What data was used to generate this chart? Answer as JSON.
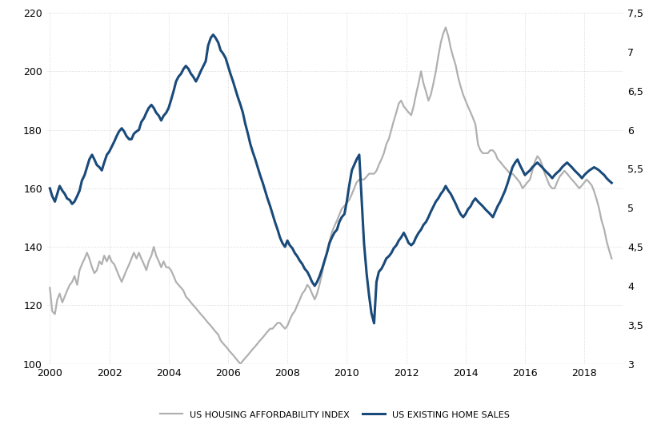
{
  "background_color": "#ffffff",
  "grid_color": "#d0d0d0",
  "affordability_color": "#b0b0b0",
  "sales_color": "#1a4a7a",
  "affordability_lw": 1.6,
  "sales_lw": 2.2,
  "left_ylim": [
    100,
    220
  ],
  "right_ylim": [
    3,
    7.5
  ],
  "left_yticks": [
    100,
    120,
    140,
    160,
    180,
    200,
    220
  ],
  "right_yticks": [
    3.0,
    3.5,
    4.0,
    4.5,
    5.0,
    5.5,
    6.0,
    6.5,
    7.0,
    7.5
  ],
  "right_ytick_labels": [
    "3",
    "3,5",
    "4",
    "4,5",
    "5",
    "5,5",
    "6",
    "6,5",
    "7",
    "7,5"
  ],
  "xticks": [
    2000,
    2002,
    2004,
    2006,
    2008,
    2010,
    2012,
    2014,
    2016,
    2018
  ],
  "xlim": [
    1999.9,
    2019.3
  ],
  "legend_labels": [
    "US HOUSING AFFORDABILITY INDEX",
    "US EXISTING HOME SALES"
  ],
  "legend_colors": [
    "#b0b0b0",
    "#1a4a7a"
  ],
  "affordability_data": {
    "years": [
      2000.0,
      2000.08,
      2000.17,
      2000.25,
      2000.33,
      2000.42,
      2000.5,
      2000.58,
      2000.67,
      2000.75,
      2000.83,
      2000.92,
      2001.0,
      2001.08,
      2001.17,
      2001.25,
      2001.33,
      2001.42,
      2001.5,
      2001.58,
      2001.67,
      2001.75,
      2001.83,
      2001.92,
      2002.0,
      2002.08,
      2002.17,
      2002.25,
      2002.33,
      2002.42,
      2002.5,
      2002.58,
      2002.67,
      2002.75,
      2002.83,
      2002.92,
      2003.0,
      2003.08,
      2003.17,
      2003.25,
      2003.33,
      2003.42,
      2003.5,
      2003.58,
      2003.67,
      2003.75,
      2003.83,
      2003.92,
      2004.0,
      2004.08,
      2004.17,
      2004.25,
      2004.33,
      2004.42,
      2004.5,
      2004.58,
      2004.67,
      2004.75,
      2004.83,
      2004.92,
      2005.0,
      2005.08,
      2005.17,
      2005.25,
      2005.33,
      2005.42,
      2005.5,
      2005.58,
      2005.67,
      2005.75,
      2005.83,
      2005.92,
      2006.0,
      2006.08,
      2006.17,
      2006.25,
      2006.33,
      2006.42,
      2006.5,
      2006.58,
      2006.67,
      2006.75,
      2006.83,
      2006.92,
      2007.0,
      2007.08,
      2007.17,
      2007.25,
      2007.33,
      2007.42,
      2007.5,
      2007.58,
      2007.67,
      2007.75,
      2007.83,
      2007.92,
      2008.0,
      2008.08,
      2008.17,
      2008.25,
      2008.33,
      2008.42,
      2008.5,
      2008.58,
      2008.67,
      2008.75,
      2008.83,
      2008.92,
      2009.0,
      2009.08,
      2009.17,
      2009.25,
      2009.33,
      2009.42,
      2009.5,
      2009.58,
      2009.67,
      2009.75,
      2009.83,
      2009.92,
      2010.0,
      2010.08,
      2010.17,
      2010.25,
      2010.33,
      2010.42,
      2010.5,
      2010.58,
      2010.67,
      2010.75,
      2010.83,
      2010.92,
      2011.0,
      2011.08,
      2011.17,
      2011.25,
      2011.33,
      2011.42,
      2011.5,
      2011.58,
      2011.67,
      2011.75,
      2011.83,
      2011.92,
      2012.0,
      2012.08,
      2012.17,
      2012.25,
      2012.33,
      2012.42,
      2012.5,
      2012.58,
      2012.67,
      2012.75,
      2012.83,
      2012.92,
      2013.0,
      2013.08,
      2013.17,
      2013.25,
      2013.33,
      2013.42,
      2013.5,
      2013.58,
      2013.67,
      2013.75,
      2013.83,
      2013.92,
      2014.0,
      2014.08,
      2014.17,
      2014.25,
      2014.33,
      2014.42,
      2014.5,
      2014.58,
      2014.67,
      2014.75,
      2014.83,
      2014.92,
      2015.0,
      2015.08,
      2015.17,
      2015.25,
      2015.33,
      2015.42,
      2015.5,
      2015.58,
      2015.67,
      2015.75,
      2015.83,
      2015.92,
      2016.0,
      2016.08,
      2016.17,
      2016.25,
      2016.33,
      2016.42,
      2016.5,
      2016.58,
      2016.67,
      2016.75,
      2016.83,
      2016.92,
      2017.0,
      2017.08,
      2017.17,
      2017.25,
      2017.33,
      2017.42,
      2017.5,
      2017.58,
      2017.67,
      2017.75,
      2017.83,
      2017.92,
      2018.0,
      2018.08,
      2018.17,
      2018.25,
      2018.33,
      2018.42,
      2018.5,
      2018.58,
      2018.67,
      2018.75,
      2018.83,
      2018.92
    ],
    "values": [
      126,
      118,
      117,
      122,
      124,
      121,
      123,
      125,
      127,
      128,
      130,
      127,
      132,
      134,
      136,
      138,
      136,
      133,
      131,
      132,
      135,
      134,
      137,
      135,
      137,
      135,
      134,
      132,
      130,
      128,
      130,
      132,
      134,
      136,
      138,
      136,
      138,
      136,
      134,
      132,
      135,
      137,
      140,
      137,
      135,
      133,
      135,
      133,
      133,
      132,
      130,
      128,
      127,
      126,
      125,
      123,
      122,
      121,
      120,
      119,
      118,
      117,
      116,
      115,
      114,
      113,
      112,
      111,
      110,
      108,
      107,
      106,
      105,
      104,
      103,
      102,
      101,
      100,
      101,
      102,
      103,
      104,
      105,
      106,
      107,
      108,
      109,
      110,
      111,
      112,
      112,
      113,
      114,
      114,
      113,
      112,
      113,
      115,
      117,
      118,
      120,
      122,
      124,
      125,
      127,
      126,
      124,
      122,
      124,
      127,
      131,
      135,
      138,
      142,
      145,
      147,
      149,
      151,
      153,
      154,
      155,
      156,
      158,
      160,
      162,
      163,
      163,
      163,
      164,
      165,
      165,
      165,
      166,
      168,
      170,
      172,
      175,
      177,
      180,
      183,
      186,
      189,
      190,
      188,
      187,
      186,
      185,
      188,
      192,
      196,
      200,
      196,
      193,
      190,
      192,
      196,
      200,
      205,
      210,
      213,
      215,
      212,
      208,
      205,
      202,
      198,
      195,
      192,
      190,
      188,
      186,
      184,
      182,
      175,
      173,
      172,
      172,
      172,
      173,
      173,
      172,
      170,
      169,
      168,
      167,
      166,
      165,
      165,
      164,
      163,
      162,
      160,
      161,
      162,
      163,
      166,
      169,
      171,
      170,
      168,
      165,
      163,
      161,
      160,
      160,
      162,
      164,
      165,
      166,
      165,
      164,
      163,
      162,
      161,
      160,
      161,
      162,
      163,
      162,
      161,
      159,
      156,
      153,
      149,
      146,
      142,
      139,
      136
    ]
  },
  "sales_data": {
    "years": [
      2000.0,
      2000.08,
      2000.17,
      2000.25,
      2000.33,
      2000.42,
      2000.5,
      2000.58,
      2000.67,
      2000.75,
      2000.83,
      2000.92,
      2001.0,
      2001.08,
      2001.17,
      2001.25,
      2001.33,
      2001.42,
      2001.5,
      2001.58,
      2001.67,
      2001.75,
      2001.83,
      2001.92,
      2002.0,
      2002.08,
      2002.17,
      2002.25,
      2002.33,
      2002.42,
      2002.5,
      2002.58,
      2002.67,
      2002.75,
      2002.83,
      2002.92,
      2003.0,
      2003.08,
      2003.17,
      2003.25,
      2003.33,
      2003.42,
      2003.5,
      2003.58,
      2003.67,
      2003.75,
      2003.83,
      2003.92,
      2004.0,
      2004.08,
      2004.17,
      2004.25,
      2004.33,
      2004.42,
      2004.5,
      2004.58,
      2004.67,
      2004.75,
      2004.83,
      2004.92,
      2005.0,
      2005.08,
      2005.17,
      2005.25,
      2005.33,
      2005.42,
      2005.5,
      2005.58,
      2005.67,
      2005.75,
      2005.83,
      2005.92,
      2006.0,
      2006.08,
      2006.17,
      2006.25,
      2006.33,
      2006.42,
      2006.5,
      2006.58,
      2006.67,
      2006.75,
      2006.83,
      2006.92,
      2007.0,
      2007.08,
      2007.17,
      2007.25,
      2007.33,
      2007.42,
      2007.5,
      2007.58,
      2007.67,
      2007.75,
      2007.83,
      2007.92,
      2008.0,
      2008.08,
      2008.17,
      2008.25,
      2008.33,
      2008.42,
      2008.5,
      2008.58,
      2008.67,
      2008.75,
      2008.83,
      2008.92,
      2009.0,
      2009.08,
      2009.17,
      2009.25,
      2009.33,
      2009.42,
      2009.5,
      2009.58,
      2009.67,
      2009.75,
      2009.83,
      2009.92,
      2010.0,
      2010.08,
      2010.17,
      2010.25,
      2010.33,
      2010.42,
      2010.5,
      2010.58,
      2010.67,
      2010.75,
      2010.83,
      2010.92,
      2011.0,
      2011.08,
      2011.17,
      2011.25,
      2011.33,
      2011.42,
      2011.5,
      2011.58,
      2011.67,
      2011.75,
      2011.83,
      2011.92,
      2012.0,
      2012.08,
      2012.17,
      2012.25,
      2012.33,
      2012.42,
      2012.5,
      2012.58,
      2012.67,
      2012.75,
      2012.83,
      2012.92,
      2013.0,
      2013.08,
      2013.17,
      2013.25,
      2013.33,
      2013.42,
      2013.5,
      2013.58,
      2013.67,
      2013.75,
      2013.83,
      2013.92,
      2014.0,
      2014.08,
      2014.17,
      2014.25,
      2014.33,
      2014.42,
      2014.5,
      2014.58,
      2014.67,
      2014.75,
      2014.83,
      2014.92,
      2015.0,
      2015.08,
      2015.17,
      2015.25,
      2015.33,
      2015.42,
      2015.5,
      2015.58,
      2015.67,
      2015.75,
      2015.83,
      2015.92,
      2016.0,
      2016.08,
      2016.17,
      2016.25,
      2016.33,
      2016.42,
      2016.5,
      2016.58,
      2016.67,
      2016.75,
      2016.83,
      2016.92,
      2017.0,
      2017.08,
      2017.17,
      2017.25,
      2017.33,
      2017.42,
      2017.5,
      2017.58,
      2017.67,
      2017.75,
      2017.83,
      2017.92,
      2018.0,
      2018.08,
      2018.17,
      2018.25,
      2018.33,
      2018.42,
      2018.5,
      2018.58,
      2018.67,
      2018.75,
      2018.83,
      2018.92
    ],
    "values": [
      5.25,
      5.15,
      5.08,
      5.18,
      5.28,
      5.22,
      5.18,
      5.12,
      5.1,
      5.05,
      5.08,
      5.15,
      5.22,
      5.35,
      5.42,
      5.52,
      5.62,
      5.68,
      5.62,
      5.55,
      5.52,
      5.48,
      5.58,
      5.68,
      5.72,
      5.78,
      5.85,
      5.92,
      5.98,
      6.02,
      5.98,
      5.92,
      5.88,
      5.88,
      5.95,
      5.98,
      6.0,
      6.1,
      6.15,
      6.22,
      6.28,
      6.32,
      6.28,
      6.22,
      6.18,
      6.12,
      6.18,
      6.22,
      6.28,
      6.38,
      6.5,
      6.62,
      6.68,
      6.72,
      6.78,
      6.82,
      6.78,
      6.72,
      6.68,
      6.62,
      6.68,
      6.75,
      6.82,
      6.88,
      7.08,
      7.18,
      7.22,
      7.18,
      7.12,
      7.02,
      6.98,
      6.92,
      6.82,
      6.72,
      6.62,
      6.52,
      6.42,
      6.32,
      6.22,
      6.08,
      5.95,
      5.82,
      5.72,
      5.62,
      5.52,
      5.42,
      5.32,
      5.22,
      5.12,
      5.02,
      4.92,
      4.82,
      4.72,
      4.62,
      4.55,
      4.5,
      4.58,
      4.52,
      4.48,
      4.42,
      4.38,
      4.32,
      4.28,
      4.22,
      4.18,
      4.12,
      4.05,
      4.0,
      4.05,
      4.12,
      4.22,
      4.32,
      4.42,
      4.55,
      4.62,
      4.68,
      4.72,
      4.82,
      4.88,
      4.92,
      5.08,
      5.28,
      5.48,
      5.55,
      5.62,
      5.68,
      5.12,
      4.55,
      4.15,
      3.88,
      3.65,
      3.52,
      4.05,
      4.18,
      4.22,
      4.28,
      4.35,
      4.38,
      4.42,
      4.48,
      4.52,
      4.58,
      4.62,
      4.68,
      4.62,
      4.55,
      4.52,
      4.55,
      4.62,
      4.68,
      4.72,
      4.78,
      4.82,
      4.88,
      4.95,
      5.02,
      5.08,
      5.12,
      5.18,
      5.22,
      5.28,
      5.22,
      5.18,
      5.12,
      5.05,
      4.98,
      4.92,
      4.88,
      4.92,
      4.98,
      5.02,
      5.08,
      5.12,
      5.08,
      5.05,
      5.02,
      4.98,
      4.95,
      4.92,
      4.88,
      4.95,
      5.02,
      5.08,
      5.15,
      5.22,
      5.32,
      5.42,
      5.52,
      5.58,
      5.62,
      5.55,
      5.48,
      5.42,
      5.45,
      5.48,
      5.52,
      5.55,
      5.58,
      5.55,
      5.52,
      5.48,
      5.45,
      5.42,
      5.38,
      5.42,
      5.45,
      5.48,
      5.52,
      5.55,
      5.58,
      5.55,
      5.52,
      5.48,
      5.45,
      5.42,
      5.38,
      5.42,
      5.45,
      5.48,
      5.5,
      5.52,
      5.5,
      5.48,
      5.45,
      5.42,
      5.38,
      5.35,
      5.32
    ]
  }
}
